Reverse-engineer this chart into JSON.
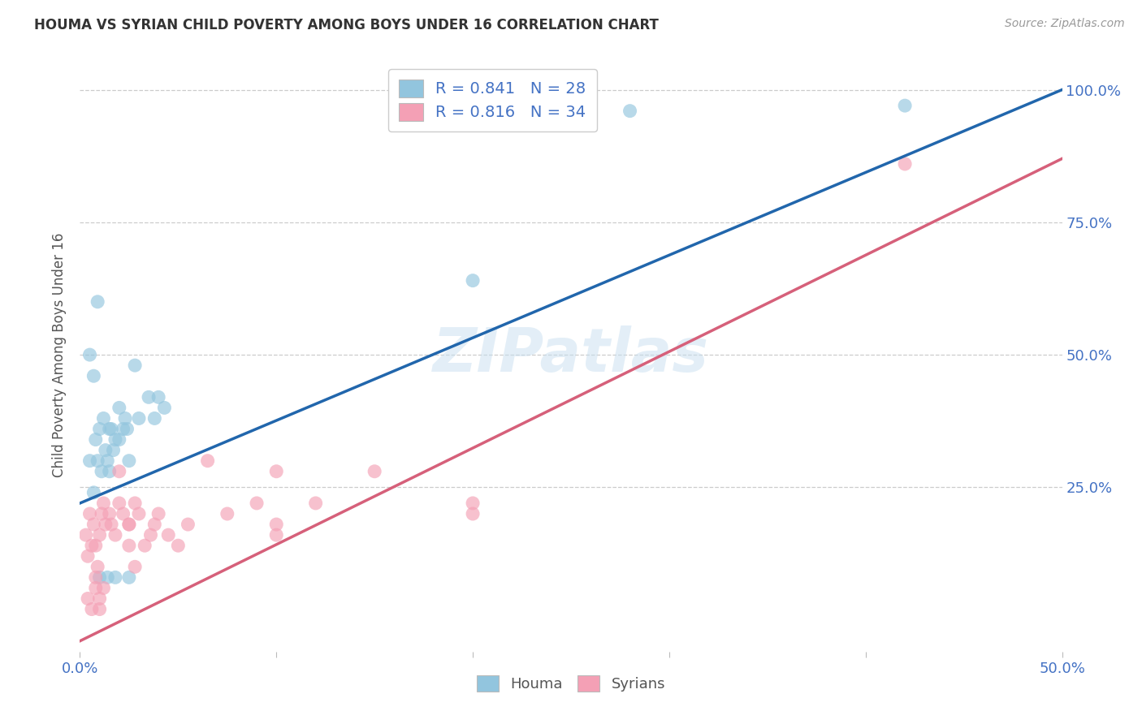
{
  "title": "HOUMA VS SYRIAN CHILD POVERTY AMONG BOYS UNDER 16 CORRELATION CHART",
  "source": "Source: ZipAtlas.com",
  "ylabel": "Child Poverty Among Boys Under 16",
  "xlim": [
    0.0,
    0.5
  ],
  "ylim": [
    -0.06,
    1.06
  ],
  "xticks": [
    0.0,
    0.1,
    0.2,
    0.3,
    0.4,
    0.5
  ],
  "xtick_labels": [
    "0.0%",
    "",
    "",
    "",
    "",
    "50.0%"
  ],
  "ytick_labels_right": [
    "25.0%",
    "50.0%",
    "75.0%",
    "100.0%"
  ],
  "ytick_vals": [
    0.25,
    0.5,
    0.75,
    1.0
  ],
  "watermark": "ZIPatlas",
  "legend_bottom_labels": [
    "Houma",
    "Syrians"
  ],
  "houma_color": "#92c5de",
  "syrian_color": "#f4a0b5",
  "houma_line_color": "#2166ac",
  "syrian_line_color": "#d6607a",
  "background_color": "#ffffff",
  "grid_color": "#cccccc",
  "houma_R": 0.841,
  "houma_N": 28,
  "syrian_R": 0.816,
  "syrian_N": 34,
  "houma_line_x0": 0.0,
  "houma_line_y0": 0.22,
  "houma_line_x1": 0.5,
  "houma_line_y1": 1.0,
  "syrian_line_x0": 0.0,
  "syrian_line_y0": -0.04,
  "syrian_line_x1": 0.5,
  "syrian_line_y1": 0.87,
  "houma_x": [
    0.005,
    0.007,
    0.008,
    0.009,
    0.01,
    0.011,
    0.012,
    0.013,
    0.014,
    0.015,
    0.015,
    0.016,
    0.017,
    0.018,
    0.02,
    0.02,
    0.022,
    0.023,
    0.024,
    0.025,
    0.028,
    0.03,
    0.035,
    0.038,
    0.04,
    0.043,
    0.28,
    0.42
  ],
  "houma_y": [
    0.3,
    0.24,
    0.34,
    0.3,
    0.36,
    0.28,
    0.38,
    0.32,
    0.3,
    0.36,
    0.28,
    0.36,
    0.32,
    0.34,
    0.4,
    0.34,
    0.36,
    0.38,
    0.36,
    0.3,
    0.48,
    0.38,
    0.42,
    0.38,
    0.42,
    0.4,
    0.96,
    0.97
  ],
  "houma_x2": [
    0.005,
    0.007,
    0.009,
    0.01,
    0.014,
    0.018,
    0.2,
    0.025
  ],
  "houma_y2": [
    0.5,
    0.46,
    0.6,
    0.08,
    0.08,
    0.08,
    0.64,
    0.08
  ],
  "syrian_x": [
    0.003,
    0.004,
    0.005,
    0.006,
    0.007,
    0.008,
    0.009,
    0.01,
    0.011,
    0.012,
    0.013,
    0.015,
    0.016,
    0.018,
    0.02,
    0.022,
    0.025,
    0.028,
    0.03,
    0.033,
    0.036,
    0.038,
    0.04,
    0.045,
    0.05,
    0.055,
    0.065,
    0.075,
    0.09,
    0.1,
    0.1,
    0.12,
    0.15,
    0.42
  ],
  "syrian_y": [
    0.16,
    0.12,
    0.2,
    0.14,
    0.18,
    0.14,
    0.1,
    0.16,
    0.2,
    0.22,
    0.18,
    0.2,
    0.18,
    0.16,
    0.22,
    0.2,
    0.18,
    0.22,
    0.2,
    0.14,
    0.16,
    0.18,
    0.2,
    0.16,
    0.14,
    0.18,
    0.3,
    0.2,
    0.22,
    0.16,
    0.18,
    0.22,
    0.28,
    0.86
  ],
  "syrian_x2": [
    0.004,
    0.006,
    0.008,
    0.008,
    0.01,
    0.01,
    0.012,
    0.02,
    0.025,
    0.025,
    0.028,
    0.1,
    0.2,
    0.2
  ],
  "syrian_y2": [
    0.04,
    0.02,
    0.06,
    0.08,
    0.04,
    0.02,
    0.06,
    0.28,
    0.14,
    0.18,
    0.1,
    0.28,
    0.2,
    0.22
  ]
}
